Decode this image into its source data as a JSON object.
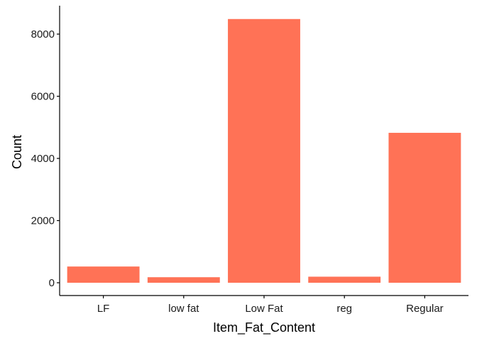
{
  "chart_data": {
    "type": "bar",
    "title": "",
    "xlabel": "Item_Fat_Content",
    "ylabel": "Count",
    "categories": [
      "LF",
      "low fat",
      "Low Fat",
      "reg",
      "Regular"
    ],
    "values": [
      522,
      178,
      8485,
      195,
      4824
    ],
    "ylim": [
      0,
      8950
    ],
    "yticks": [
      0,
      2000,
      4000,
      6000,
      8000
    ],
    "grid": false,
    "legend": "none",
    "colors": {
      "bar": "#ff7256",
      "axis": "#000000",
      "background": "#ffffff"
    }
  }
}
